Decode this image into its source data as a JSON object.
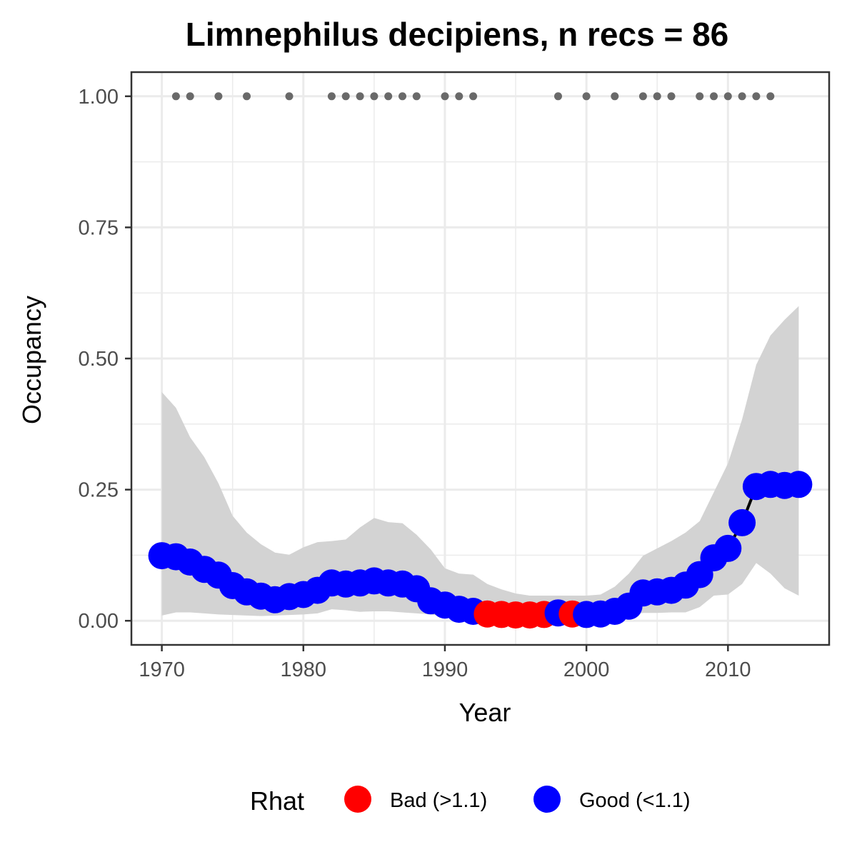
{
  "chart_data": {
    "type": "line",
    "title": "Limnephilus decipiens, n recs = 86",
    "xlabel": "Year",
    "ylabel": "Occupancy",
    "xlim": [
      1967.85,
      1917.15
    ],
    "x_ticks": [
      1970,
      1980,
      1990,
      2000,
      2010
    ],
    "x_tick_labels": [
      "1970",
      "1980",
      "1990",
      "2000",
      "2010"
    ],
    "ylim": [
      -0.046,
      1.046
    ],
    "y_ticks": [
      0,
      0.25,
      0.5,
      0.75,
      1.0
    ],
    "y_tick_labels": [
      "0.00",
      "0.25",
      "0.50",
      "0.75",
      "1.00"
    ],
    "grid": true,
    "colors": {
      "bad": "#ff0000",
      "good": "#0000ff",
      "band": "#d3d3d3",
      "line": "#000000",
      "record_points": "#696969",
      "grid": "#ebebeb",
      "panel_border": "#333333"
    },
    "series": [
      {
        "x": [
          1970,
          1971,
          1972,
          1973,
          1974,
          1975,
          1976,
          1977,
          1978,
          1979,
          1980,
          1981,
          1982,
          1983,
          1984,
          1985,
          1986,
          1987,
          1988,
          1989,
          1990,
          1991,
          1992,
          1993,
          1994,
          1995,
          1996,
          1997,
          1998,
          1999,
          2000,
          2001,
          2002,
          2003,
          2004,
          2005,
          2006,
          2007,
          2008,
          2009,
          2010,
          2011,
          2012,
          2013,
          2014,
          2015
        ],
        "y": [
          0.124,
          0.122,
          0.112,
          0.098,
          0.087,
          0.067,
          0.055,
          0.047,
          0.04,
          0.046,
          0.05,
          0.058,
          0.072,
          0.07,
          0.072,
          0.076,
          0.072,
          0.07,
          0.061,
          0.038,
          0.03,
          0.022,
          0.018,
          0.013,
          0.012,
          0.011,
          0.011,
          0.012,
          0.015,
          0.013,
          0.012,
          0.013,
          0.018,
          0.028,
          0.053,
          0.055,
          0.058,
          0.068,
          0.088,
          0.12,
          0.138,
          0.187,
          0.256,
          0.26,
          0.258,
          0.26
        ],
        "rhat": [
          "Good",
          "Good",
          "Good",
          "Good",
          "Good",
          "Good",
          "Good",
          "Good",
          "Good",
          "Good",
          "Good",
          "Good",
          "Good",
          "Good",
          "Good",
          "Good",
          "Good",
          "Good",
          "Good",
          "Good",
          "Good",
          "Good",
          "Good",
          "Bad",
          "Bad",
          "Bad",
          "Bad",
          "Bad",
          "Good",
          "Bad",
          "Good",
          "Good",
          "Good",
          "Good",
          "Good",
          "Good",
          "Good",
          "Good",
          "Good",
          "Good",
          "Good",
          "Good",
          "Good",
          "Good",
          "Good",
          "Good"
        ],
        "lower": [
          0.01,
          0.016,
          0.016,
          0.014,
          0.012,
          0.011,
          0.01,
          0.009,
          0.01,
          0.011,
          0.012,
          0.014,
          0.022,
          0.02,
          0.017,
          0.018,
          0.018,
          0.016,
          0.014,
          0.012,
          0.008,
          0.006,
          0.005,
          0.004,
          0.004,
          0.003,
          0.003,
          0.003,
          0.003,
          0.003,
          0.004,
          0.006,
          0.009,
          0.012,
          0.015,
          0.015,
          0.016,
          0.016,
          0.026,
          0.048,
          0.05,
          0.07,
          0.11,
          0.09,
          0.062,
          0.048
        ],
        "upper": [
          0.436,
          0.406,
          0.35,
          0.312,
          0.262,
          0.2,
          0.168,
          0.146,
          0.13,
          0.126,
          0.14,
          0.15,
          0.152,
          0.155,
          0.178,
          0.196,
          0.188,
          0.186,
          0.164,
          0.136,
          0.1,
          0.09,
          0.088,
          0.07,
          0.06,
          0.052,
          0.048,
          0.048,
          0.048,
          0.048,
          0.048,
          0.05,
          0.065,
          0.09,
          0.124,
          0.138,
          0.152,
          0.168,
          0.19,
          0.245,
          0.3,
          0.384,
          0.488,
          0.544,
          0.574,
          0.6
        ]
      }
    ],
    "record_years": [
      1971,
      1972,
      1974,
      1976,
      1979,
      1982,
      1983,
      1984,
      1985,
      1986,
      1987,
      1988,
      1990,
      1991,
      1992,
      1998,
      2000,
      2002,
      2004,
      2005,
      2006,
      2008,
      2009,
      2010,
      2011,
      2012,
      2013
    ],
    "record_value": 1.0,
    "legend": {
      "title": "Rhat",
      "position": "bottom",
      "entries": [
        {
          "key": "Bad",
          "label": "Bad (>1.1)",
          "color": "#ff0000"
        },
        {
          "key": "Good",
          "label": "Good (<1.1)",
          "color": "#0000ff"
        }
      ]
    }
  }
}
